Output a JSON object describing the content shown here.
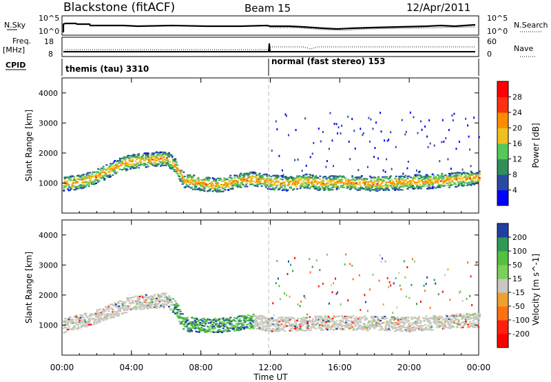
{
  "header": {
    "station": "Blackstone (fitACF)",
    "beam": "Beam 15",
    "date": "12/Apr/2011"
  },
  "top_panels": {
    "nsky_label": "N.Sky",
    "nsky_ticks": [
      "10^5",
      "10^0"
    ],
    "nsearch_label": "N.Search",
    "nsearch_ticks": [
      "10^5",
      "10^0"
    ],
    "freq_label": "Freq.",
    "freq_unit": "[MHz]",
    "freq_ticks": [
      "18",
      "8"
    ],
    "nave_label": "Nave",
    "nave_ticks": [
      "60",
      "0"
    ],
    "cpid_label": "CPID",
    "cpid_segments": [
      {
        "name": "themis (tau) 3310",
        "start_h": 0,
        "end_h": 12
      },
      {
        "name": "normal (fast stereo) 153",
        "start_h": 12,
        "end_h": 24
      }
    ]
  },
  "x_axis": {
    "label": "Time UT",
    "range_h": [
      0,
      24
    ],
    "ticks": [
      {
        "h": 0,
        "label": "00:00"
      },
      {
        "h": 4,
        "label": "04:00"
      },
      {
        "h": 8,
        "label": "08:00"
      },
      {
        "h": 12,
        "label": "12:00"
      },
      {
        "h": 16,
        "label": "16:00"
      },
      {
        "h": 20,
        "label": "20:00"
      },
      {
        "h": 24,
        "label": "00:00"
      }
    ]
  },
  "chart_data": [
    {
      "type": "heatmap",
      "title": "",
      "ylabel": "Slant Range [km]",
      "ylim": [
        0,
        4500
      ],
      "yticks": [
        "1000",
        "2000",
        "3000",
        "4000"
      ],
      "colorbar": {
        "label": "Power [dB]",
        "ticks": [
          "4",
          "8",
          "12",
          "16",
          "20",
          "24",
          "28"
        ],
        "colors": [
          "#0000ff",
          "#2a4aa8",
          "#2f8f5a",
          "#55c85a",
          "#f0c020",
          "#ff8c00",
          "#ff3010",
          "#ff0000"
        ]
      },
      "scatter_band": [
        {
          "h": 0.0,
          "center": 1000
        },
        {
          "h": 1.0,
          "center": 1050
        },
        {
          "h": 2.0,
          "center": 1250
        },
        {
          "h": 3.0,
          "center": 1550
        },
        {
          "h": 4.0,
          "center": 1750
        },
        {
          "h": 5.0,
          "center": 1800
        },
        {
          "h": 6.0,
          "center": 1850
        },
        {
          "h": 6.5,
          "center": 1600
        },
        {
          "h": 7.0,
          "center": 1100
        },
        {
          "h": 8.0,
          "center": 1000
        },
        {
          "h": 9.0,
          "center": 950
        },
        {
          "h": 10.0,
          "center": 1100
        },
        {
          "h": 11.0,
          "center": 1150
        },
        {
          "h": 12.0,
          "center": 1050
        },
        {
          "h": 13.0,
          "center": 1000
        },
        {
          "h": 14.0,
          "center": 1100
        },
        {
          "h": 15.0,
          "center": 1000
        },
        {
          "h": 16.0,
          "center": 1050
        },
        {
          "h": 18.0,
          "center": 1000
        },
        {
          "h": 20.0,
          "center": 1050
        },
        {
          "h": 22.0,
          "center": 1100
        },
        {
          "h": 24.0,
          "center": 1200
        }
      ]
    },
    {
      "type": "heatmap",
      "title": "",
      "ylabel": "Slant Range [km]",
      "ylim": [
        0,
        4500
      ],
      "yticks": [
        "1000",
        "2000",
        "3000",
        "4000"
      ],
      "colorbar": {
        "label": "Velocity [m s^-1]",
        "ticks": [
          "200",
          "100",
          "50",
          "15",
          "-15",
          "-50",
          "-100",
          "-200"
        ],
        "colors": [
          "#2040a0",
          "#2e9a55",
          "#55c040",
          "#7ad05a",
          "#c8c8c0",
          "#f0a030",
          "#ff7010",
          "#ff2010",
          "#ff0000"
        ]
      },
      "scatter_band": [
        {
          "h": 0.0,
          "center": 1000
        },
        {
          "h": 2.0,
          "center": 1300
        },
        {
          "h": 4.0,
          "center": 1750
        },
        {
          "h": 6.0,
          "center": 1850
        },
        {
          "h": 6.5,
          "center": 1600
        },
        {
          "h": 7.0,
          "center": 1050
        },
        {
          "h": 9.0,
          "center": 1000
        },
        {
          "h": 11.0,
          "center": 1150
        },
        {
          "h": 12.0,
          "center": 1050
        },
        {
          "h": 16.0,
          "center": 1100
        },
        {
          "h": 20.0,
          "center": 1050
        },
        {
          "h": 24.0,
          "center": 1200
        }
      ]
    }
  ]
}
